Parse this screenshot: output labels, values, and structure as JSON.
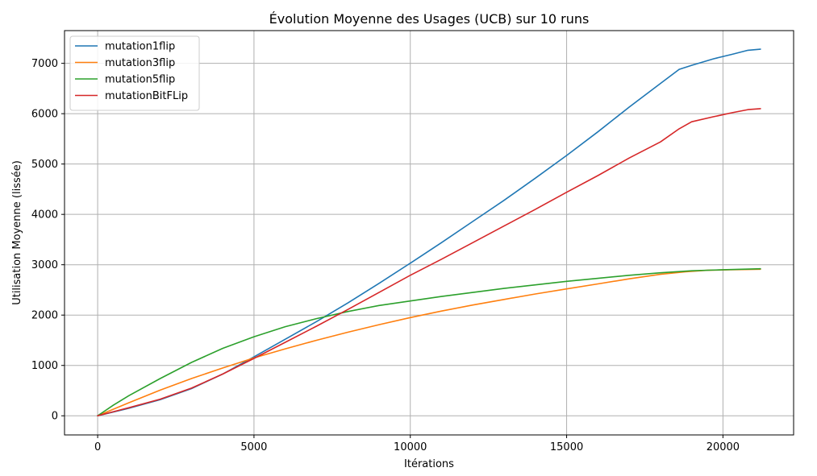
{
  "chart_data": {
    "type": "line",
    "title": "Évolution Moyenne des Usages (UCB) sur 10 runs",
    "xlabel": "Itérations",
    "ylabel": "Utilisation Moyenne (lissée)",
    "xlim": [
      -1060,
      22260
    ],
    "ylim": [
      -380,
      7650
    ],
    "xticks": [
      0,
      5000,
      10000,
      15000,
      20000
    ],
    "xtick_labels": [
      "0",
      "5000",
      "10000",
      "15000",
      "20000"
    ],
    "yticks": [
      0,
      1000,
      2000,
      3000,
      4000,
      5000,
      6000,
      7000
    ],
    "ytick_labels": [
      "0",
      "1000",
      "2000",
      "3000",
      "4000",
      "5000",
      "6000",
      "7000"
    ],
    "grid": true,
    "legend_position": "top-left",
    "series": [
      {
        "name": "mutation1flip",
        "color": "#1f77b4",
        "x": [
          0,
          1000,
          2000,
          3000,
          4000,
          5000,
          6000,
          7000,
          8000,
          9000,
          10000,
          11000,
          12000,
          13000,
          14000,
          15000,
          16000,
          17000,
          18000,
          18600,
          19000,
          19700,
          20300,
          20800,
          21200
        ],
        "y": [
          0,
          150,
          320,
          540,
          830,
          1170,
          1520,
          1870,
          2240,
          2630,
          3030,
          3440,
          3860,
          4280,
          4720,
          5170,
          5640,
          6130,
          6600,
          6880,
          6960,
          7090,
          7180,
          7260,
          7280
        ]
      },
      {
        "name": "mutation3flip",
        "color": "#ff7f0e",
        "x": [
          0,
          1000,
          2000,
          3000,
          4000,
          5000,
          6000,
          7000,
          8000,
          9000,
          10000,
          11000,
          12000,
          13000,
          14000,
          15000,
          16000,
          17000,
          18000,
          18800,
          19500,
          20200,
          21200
        ],
        "y": [
          0,
          260,
          510,
          740,
          950,
          1150,
          1330,
          1500,
          1660,
          1810,
          1950,
          2080,
          2200,
          2310,
          2420,
          2520,
          2620,
          2720,
          2810,
          2860,
          2890,
          2900,
          2910
        ]
      },
      {
        "name": "mutation5flip",
        "color": "#2ca02c",
        "x": [
          0,
          500,
          1000,
          2000,
          3000,
          4000,
          5000,
          6000,
          7000,
          8000,
          9000,
          10000,
          11000,
          12000,
          13000,
          14000,
          15000,
          16000,
          17000,
          18000,
          19000,
          20000,
          21200
        ],
        "y": [
          0,
          210,
          400,
          740,
          1060,
          1340,
          1570,
          1770,
          1930,
          2070,
          2190,
          2280,
          2370,
          2450,
          2530,
          2600,
          2670,
          2730,
          2790,
          2840,
          2880,
          2900,
          2920
        ]
      },
      {
        "name": "mutationBitFLip",
        "color": "#d62728",
        "x": [
          0,
          1000,
          2000,
          3000,
          4000,
          5000,
          6000,
          7000,
          8000,
          9000,
          10000,
          11000,
          12000,
          13000,
          14000,
          15000,
          16000,
          17000,
          18000,
          18600,
          19000,
          19700,
          20300,
          20800,
          21200
        ],
        "y": [
          0,
          160,
          330,
          550,
          830,
          1140,
          1460,
          1780,
          2110,
          2450,
          2790,
          3110,
          3440,
          3770,
          4100,
          4440,
          4770,
          5120,
          5440,
          5700,
          5840,
          5940,
          6020,
          6080,
          6100
        ]
      }
    ]
  }
}
